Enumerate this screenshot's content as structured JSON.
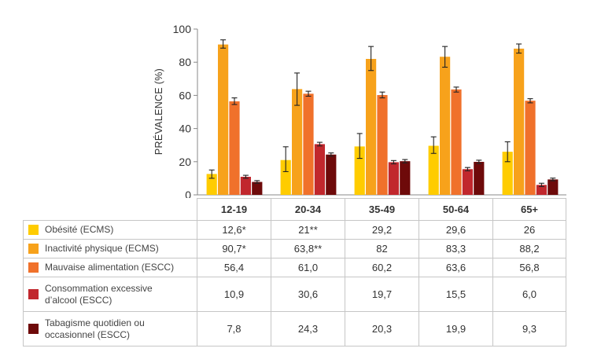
{
  "chart_data": {
    "type": "bar",
    "categories": [
      "12-19",
      "20-34",
      "35-49",
      "50-64",
      "65+"
    ],
    "ylabel": "PRÉVALENCE (%)",
    "ylim": [
      0,
      100
    ],
    "yticks": [
      0,
      20,
      40,
      60,
      80,
      100
    ],
    "grid": false,
    "legend": "table-below",
    "error_bars": true,
    "series": [
      {
        "name": "Obésité (ECMS)",
        "color": "#ffcc00",
        "values": [
          12.6,
          21,
          29.2,
          29.6,
          26
        ],
        "value_labels": [
          "12,6*",
          "21**",
          "29,2",
          "29,6",
          "26"
        ],
        "error_low": [
          10,
          14,
          22,
          25,
          20
        ],
        "error_high": [
          15,
          29,
          37,
          35,
          32
        ]
      },
      {
        "name": "Inactivité physique (ECMS)",
        "color": "#f7a21b",
        "values": [
          90.7,
          63.8,
          82,
          83.3,
          88.2
        ],
        "value_labels": [
          "90,7*",
          "63,8**",
          "82",
          "83,3",
          "88,2"
        ],
        "error_low": [
          88.5,
          54,
          75,
          77,
          85.5
        ],
        "error_high": [
          93.5,
          73.5,
          89.5,
          89.5,
          91
        ]
      },
      {
        "name": "Mauvaise alimentation (ESCC)",
        "color": "#f0712b",
        "values": [
          56.4,
          61.0,
          60.2,
          63.6,
          56.8
        ],
        "value_labels": [
          "56,4",
          "61,0",
          "60,2",
          "63,6",
          "56,8"
        ],
        "error_low": [
          54.5,
          59.5,
          58.5,
          62,
          55.5
        ],
        "error_high": [
          58.5,
          62.5,
          62,
          65,
          58
        ]
      },
      {
        "name": "Consommation excessive d’alcool (ESCC)",
        "color": "#c1272d",
        "values": [
          10.9,
          30.6,
          19.7,
          15.5,
          6.0
        ],
        "value_labels": [
          "10,9",
          "30,6",
          "19,7",
          "15,5",
          "6,0"
        ],
        "error_low": [
          10,
          29.5,
          18.7,
          14.5,
          5
        ],
        "error_high": [
          11.8,
          31.7,
          20.7,
          16.5,
          7
        ]
      },
      {
        "name": "Tabagisme quotidien ou occasionnel (ESCC)",
        "color": "#6e0a0a",
        "values": [
          7.8,
          24.3,
          20.3,
          19.9,
          9.3
        ],
        "value_labels": [
          "7,8",
          "24,3",
          "20,3",
          "19,9",
          "9,3"
        ],
        "error_low": [
          7,
          23.3,
          19.3,
          18.9,
          8.5
        ],
        "error_high": [
          8.6,
          25.3,
          21.3,
          20.9,
          10.1
        ]
      }
    ]
  },
  "table": {
    "rows": [
      {
        "label": "Obésité (ECMS)"
      },
      {
        "label": "Inactivité physique (ECMS)"
      },
      {
        "label": "Mauvaise alimentation (ESCC)"
      },
      {
        "label_line1": "Consommation excessive",
        "label_line2": "d’alcool (ESCC)"
      },
      {
        "label_line1": "Tabagisme quotidien ou",
        "label_line2": "occasionnel (ESCC)"
      }
    ]
  }
}
